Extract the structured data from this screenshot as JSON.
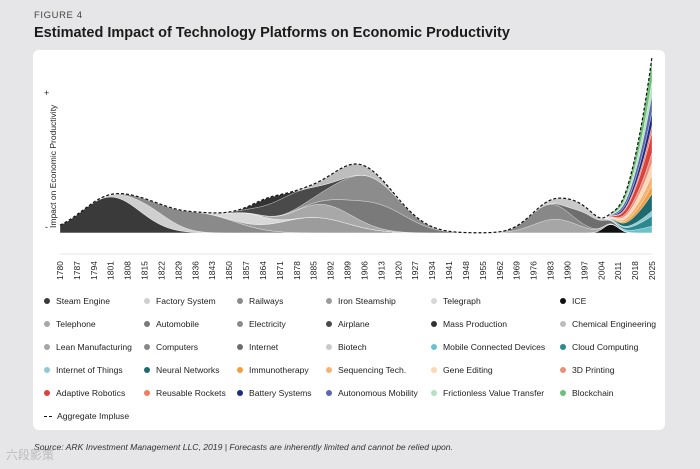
{
  "figure_label": "FIGURE 4",
  "title": "Estimated Impact of Technology Platforms on Economic Productivity",
  "source": "Source: ARK Investment Management LLC, 2019   |   Forecasts are inherently limited and cannot be relied upon.",
  "watermark": "六段影策",
  "chart_data": {
    "type": "area",
    "ylabel": "Impact on Economic Productivity",
    "y_plus": "+",
    "y_minus": "-",
    "x_ticks": [
      "1780",
      "1787",
      "1794",
      "1801",
      "1808",
      "1815",
      "1822",
      "1829",
      "1836",
      "1843",
      "1850",
      "1857",
      "1864",
      "1871",
      "1878",
      "1885",
      "1892",
      "1899",
      "1906",
      "1913",
      "1920",
      "1927",
      "1934",
      "1941",
      "1948",
      "1955",
      "1962",
      "1969",
      "1976",
      "1983",
      "1990",
      "1997",
      "2004",
      "2011",
      "2018",
      "2025"
    ],
    "x_range": [
      1780,
      2025
    ],
    "ylim": [
      -1,
      10
    ],
    "series": [
      {
        "name": "Steam Engine",
        "color": "#3a3a3a",
        "peak": 1801,
        "width": 12,
        "height": 2.1
      },
      {
        "name": "Factory System",
        "color": "#cfcfcf",
        "peak": 1818,
        "width": 9,
        "height": 0.7
      },
      {
        "name": "Railways",
        "color": "#8a8a8a",
        "peak": 1838,
        "width": 14,
        "height": 1.1
      },
      {
        "name": "Iron Steamship",
        "color": "#9c9c9c",
        "peak": 1885,
        "width": 14,
        "height": 0.9
      },
      {
        "name": "Telegraph",
        "color": "#d8d8d8",
        "peak": 1858,
        "width": 8,
        "height": 0.6
      },
      {
        "name": "ICE",
        "color": "#111111",
        "peak": 2008,
        "width": 3,
        "height": 0.5
      },
      {
        "name": "Telephone",
        "color": "#a8a8a8",
        "peak": 1890,
        "width": 12,
        "height": 0.8
      },
      {
        "name": "Automobile",
        "color": "#7a7a7a",
        "peak": 1912,
        "width": 12,
        "height": 1.4
      },
      {
        "name": "Electricity",
        "color": "#8c8c8c",
        "peak": 1906,
        "width": 12,
        "height": 1.5
      },
      {
        "name": "Airplane",
        "color": "#4a4a4a",
        "peak": 1875,
        "width": 10,
        "height": 1.0
      },
      {
        "name": "Mass Production",
        "color": "#333333",
        "peak": 1866,
        "width": 6,
        "height": 0.4
      },
      {
        "name": "Chemical Engineering",
        "color": "#bdbdbd",
        "peak": 1900,
        "width": 9,
        "height": 0.7
      },
      {
        "name": "Lean Manufacturing",
        "color": "#a6a6a6",
        "peak": 1985,
        "width": 9,
        "height": 0.8
      },
      {
        "name": "Computers",
        "color": "#888888",
        "peak": 1982,
        "width": 8,
        "height": 0.9
      },
      {
        "name": "Internet",
        "color": "#6e6e6e",
        "peak": 1998,
        "width": 6,
        "height": 0.7
      },
      {
        "name": "Biotech",
        "color": "#c9c9c9",
        "peak": 1992,
        "width": 7,
        "height": 0.5
      },
      {
        "name": "Mobile Connected Devices",
        "color": "#6cc2cc",
        "peak": 2025,
        "width": 12,
        "height": 0.4
      },
      {
        "name": "Cloud Computing",
        "color": "#2b8a8f",
        "peak": 2025,
        "width": 12,
        "height": 0.6
      },
      {
        "name": "Internet of Things",
        "color": "#8fc9d3",
        "peak": 2025,
        "width": 12,
        "height": 0.3
      },
      {
        "name": "Neural Networks",
        "color": "#1f6a6e",
        "peak": 2025,
        "width": 12,
        "height": 1.0
      },
      {
        "name": "Immunotherapy",
        "color": "#f0a040",
        "peak": 2025,
        "width": 12,
        "height": 0.5
      },
      {
        "name": "Sequencing Tech.",
        "color": "#f4b374",
        "peak": 2025,
        "width": 12,
        "height": 0.6
      },
      {
        "name": "Gene Editing",
        "color": "#fbd9b8",
        "peak": 2025,
        "width": 12,
        "height": 0.7
      },
      {
        "name": "3D Printing",
        "color": "#e8907a",
        "peak": 2025,
        "width": 12,
        "height": 0.6
      },
      {
        "name": "Adaptive Robotics",
        "color": "#d9433d",
        "peak": 2025,
        "width": 12,
        "height": 1.2
      },
      {
        "name": "Reusable Rockets",
        "color": "#f07d60",
        "peak": 2025,
        "width": 12,
        "height": 0.4
      },
      {
        "name": "Battery Systems",
        "color": "#1e2c80",
        "peak": 2025,
        "width": 12,
        "height": 0.8
      },
      {
        "name": "Autonomous Mobility",
        "color": "#5b68ad",
        "peak": 2025,
        "width": 12,
        "height": 1.0
      },
      {
        "name": "Frictionless Value Transfer",
        "color": "#b4e2c0",
        "peak": 2025,
        "width": 12,
        "height": 0.8
      },
      {
        "name": "Blockchain",
        "color": "#6cc07a",
        "peak": 2025,
        "width": 12,
        "height": 1.4
      }
    ],
    "aggregate_label": "Aggregate Impluse"
  }
}
